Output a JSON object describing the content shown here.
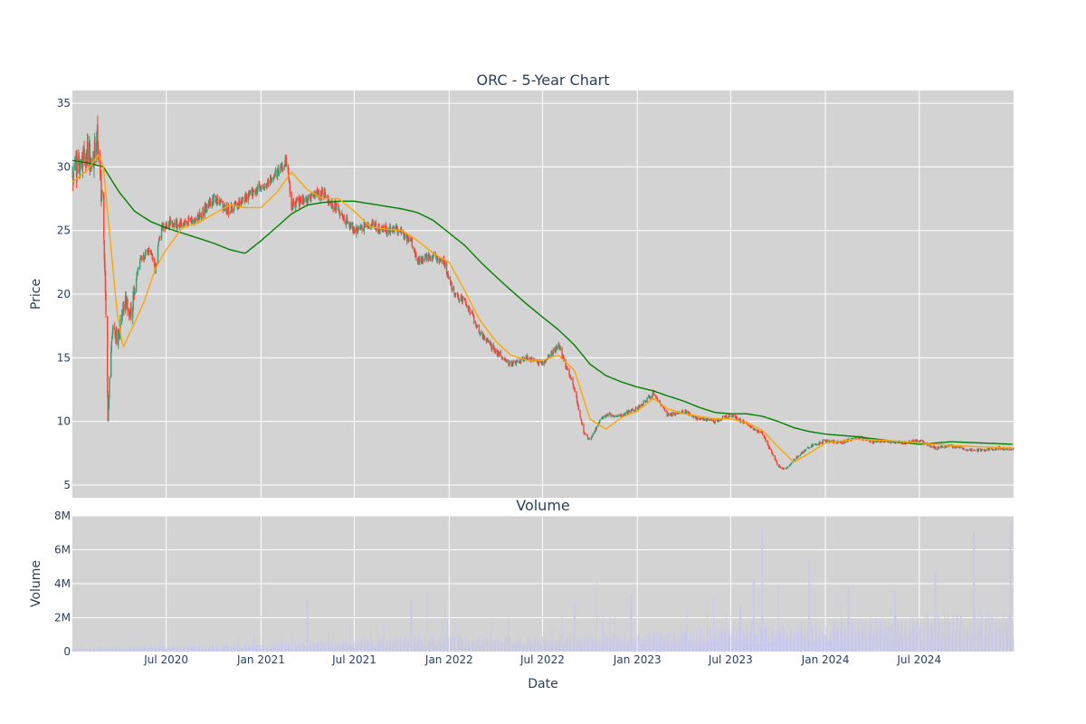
{
  "chart_data": [
    {
      "type": "candlestick",
      "title": "ORC - 5-Year Chart",
      "ylabel": "Price",
      "ylim": [
        4,
        36
      ],
      "yticks": [
        5,
        10,
        15,
        20,
        25,
        30,
        35
      ],
      "xlim": [
        "2020-01-01",
        "2024-12-31"
      ],
      "grid": true,
      "background": "#d3d3d3",
      "up_color": "#3d9970",
      "down_color": "#ff4136",
      "ma_short_color": "#ffa500",
      "ma_long_color": "#008000",
      "price_path": [
        [
          "2020-01-01",
          29.0
        ],
        [
          "2020-01-15",
          30.5
        ],
        [
          "2020-02-01",
          31.0
        ],
        [
          "2020-02-10",
          30.5
        ],
        [
          "2020-02-18",
          33.0
        ],
        [
          "2020-02-24",
          29.0
        ],
        [
          "2020-03-01",
          26.5
        ],
        [
          "2020-03-06",
          18.0
        ],
        [
          "2020-03-10",
          10.5
        ],
        [
          "2020-03-14",
          14.0
        ],
        [
          "2020-03-20",
          17.5
        ],
        [
          "2020-03-28",
          16.5
        ],
        [
          "2020-04-06",
          18.0
        ],
        [
          "2020-04-14",
          19.5
        ],
        [
          "2020-04-22",
          18.5
        ],
        [
          "2020-05-01",
          20.5
        ],
        [
          "2020-05-10",
          22.5
        ],
        [
          "2020-05-20",
          23.0
        ],
        [
          "2020-06-01",
          23.5
        ],
        [
          "2020-06-10",
          22.0
        ],
        [
          "2020-06-20",
          25.0
        ],
        [
          "2020-07-01",
          25.5
        ],
        [
          "2020-08-01",
          25.5
        ],
        [
          "2020-09-01",
          26.0
        ],
        [
          "2020-10-01",
          27.5
        ],
        [
          "2020-11-01",
          26.5
        ],
        [
          "2020-12-01",
          27.5
        ],
        [
          "2021-01-01",
          28.5
        ],
        [
          "2021-02-01",
          29.5
        ],
        [
          "2021-02-20",
          30.5
        ],
        [
          "2021-03-01",
          27.0
        ],
        [
          "2021-04-01",
          27.5
        ],
        [
          "2021-05-01",
          28.0
        ],
        [
          "2021-06-01",
          26.5
        ],
        [
          "2021-07-01",
          25.0
        ],
        [
          "2021-08-01",
          25.5
        ],
        [
          "2021-09-01",
          25.0
        ],
        [
          "2021-10-01",
          25.0
        ],
        [
          "2021-10-20",
          24.0
        ],
        [
          "2021-11-01",
          22.5
        ],
        [
          "2021-12-01",
          23.0
        ],
        [
          "2021-12-20",
          22.8
        ],
        [
          "2022-01-10",
          20.0
        ],
        [
          "2022-02-01",
          19.5
        ],
        [
          "2022-03-01",
          17.0
        ],
        [
          "2022-04-01",
          15.5
        ],
        [
          "2022-05-01",
          14.5
        ],
        [
          "2022-06-01",
          15.0
        ],
        [
          "2022-07-01",
          14.5
        ],
        [
          "2022-08-01",
          16.0
        ],
        [
          "2022-09-01",
          12.5
        ],
        [
          "2022-09-20",
          9.0
        ],
        [
          "2022-10-01",
          8.5
        ],
        [
          "2022-10-20",
          10.0
        ],
        [
          "2022-11-01",
          10.5
        ],
        [
          "2022-12-01",
          10.5
        ],
        [
          "2023-01-01",
          11.0
        ],
        [
          "2023-02-01",
          12.2
        ],
        [
          "2023-03-01",
          10.5
        ],
        [
          "2023-04-01",
          10.8
        ],
        [
          "2023-05-01",
          10.2
        ],
        [
          "2023-06-01",
          10.0
        ],
        [
          "2023-07-01",
          10.5
        ],
        [
          "2023-08-01",
          9.8
        ],
        [
          "2023-09-01",
          9.0
        ],
        [
          "2023-10-01",
          6.5
        ],
        [
          "2023-10-15",
          6.2
        ],
        [
          "2023-11-01",
          7.0
        ],
        [
          "2023-12-01",
          8.0
        ],
        [
          "2024-01-01",
          8.5
        ],
        [
          "2024-02-01",
          8.3
        ],
        [
          "2024-03-01",
          8.8
        ],
        [
          "2024-04-01",
          8.4
        ],
        [
          "2024-05-01",
          8.4
        ],
        [
          "2024-06-01",
          8.3
        ],
        [
          "2024-07-01",
          8.5
        ],
        [
          "2024-08-01",
          7.9
        ],
        [
          "2024-09-01",
          8.1
        ],
        [
          "2024-10-01",
          7.8
        ],
        [
          "2024-11-01",
          7.7
        ],
        [
          "2024-12-01",
          7.9
        ],
        [
          "2024-12-31",
          7.8
        ]
      ],
      "ma_short_path": [
        [
          "2020-01-01",
          28.8
        ],
        [
          "2020-02-01",
          29.8
        ],
        [
          "2020-02-20",
          31.0
        ],
        [
          "2020-03-01",
          30.0
        ],
        [
          "2020-03-15",
          24.0
        ],
        [
          "2020-03-28",
          18.5
        ],
        [
          "2020-04-08",
          15.8
        ],
        [
          "2020-04-28",
          17.5
        ],
        [
          "2020-05-20",
          19.5
        ],
        [
          "2020-06-10",
          22.0
        ],
        [
          "2020-07-01",
          23.5
        ],
        [
          "2020-08-01",
          25.2
        ],
        [
          "2020-09-01",
          25.6
        ],
        [
          "2020-10-01",
          26.3
        ],
        [
          "2020-11-01",
          27.0
        ],
        [
          "2020-12-01",
          26.8
        ],
        [
          "2021-01-01",
          26.8
        ],
        [
          "2021-02-01",
          28.0
        ],
        [
          "2021-03-01",
          29.6
        ],
        [
          "2021-04-01",
          28.2
        ],
        [
          "2021-05-01",
          27.5
        ],
        [
          "2021-06-01",
          27.5
        ],
        [
          "2021-07-01",
          26.5
        ],
        [
          "2021-08-01",
          25.3
        ],
        [
          "2021-09-01",
          25.1
        ],
        [
          "2021-10-01",
          25.0
        ],
        [
          "2021-11-01",
          24.2
        ],
        [
          "2021-12-01",
          23.2
        ],
        [
          "2022-01-01",
          22.5
        ],
        [
          "2022-02-01",
          20.2
        ],
        [
          "2022-03-01",
          18.0
        ],
        [
          "2022-04-01",
          16.3
        ],
        [
          "2022-05-01",
          15.2
        ],
        [
          "2022-06-01",
          14.8
        ],
        [
          "2022-07-01",
          14.8
        ],
        [
          "2022-08-01",
          15.2
        ],
        [
          "2022-09-01",
          14.0
        ],
        [
          "2022-10-01",
          10.2
        ],
        [
          "2022-11-01",
          9.4
        ],
        [
          "2022-12-01",
          10.3
        ],
        [
          "2023-01-01",
          10.8
        ],
        [
          "2023-02-01",
          11.8
        ],
        [
          "2023-03-01",
          11.0
        ],
        [
          "2023-04-01",
          10.6
        ],
        [
          "2023-05-01",
          10.4
        ],
        [
          "2023-06-01",
          10.2
        ],
        [
          "2023-07-01",
          10.2
        ],
        [
          "2023-08-01",
          9.9
        ],
        [
          "2023-09-01",
          9.3
        ],
        [
          "2023-10-01",
          8.0
        ],
        [
          "2023-11-01",
          6.8
        ],
        [
          "2023-12-01",
          7.5
        ],
        [
          "2024-01-01",
          8.3
        ],
        [
          "2024-03-01",
          8.6
        ],
        [
          "2024-05-01",
          8.5
        ],
        [
          "2024-07-01",
          8.3
        ],
        [
          "2024-09-01",
          8.1
        ],
        [
          "2024-12-31",
          7.9
        ]
      ],
      "ma_long_path": [
        [
          "2020-01-01",
          30.5
        ],
        [
          "2020-02-01",
          30.3
        ],
        [
          "2020-03-01",
          30.0
        ],
        [
          "2020-04-01",
          28.0
        ],
        [
          "2020-05-01",
          26.5
        ],
        [
          "2020-06-01",
          25.7
        ],
        [
          "2020-07-01",
          25.2
        ],
        [
          "2020-08-01",
          24.8
        ],
        [
          "2020-09-01",
          24.4
        ],
        [
          "2020-10-01",
          24.0
        ],
        [
          "2020-11-01",
          23.5
        ],
        [
          "2020-12-01",
          23.2
        ],
        [
          "2021-01-01",
          24.2
        ],
        [
          "2021-02-01",
          25.3
        ],
        [
          "2021-03-01",
          26.3
        ],
        [
          "2021-04-01",
          27.0
        ],
        [
          "2021-05-01",
          27.2
        ],
        [
          "2021-06-01",
          27.3
        ],
        [
          "2021-07-01",
          27.3
        ],
        [
          "2021-08-01",
          27.1
        ],
        [
          "2021-09-01",
          26.9
        ],
        [
          "2021-10-01",
          26.7
        ],
        [
          "2021-11-01",
          26.4
        ],
        [
          "2021-12-01",
          25.8
        ],
        [
          "2022-01-01",
          24.8
        ],
        [
          "2022-02-01",
          23.8
        ],
        [
          "2022-03-01",
          22.6
        ],
        [
          "2022-04-01",
          21.4
        ],
        [
          "2022-05-01",
          20.3
        ],
        [
          "2022-06-01",
          19.2
        ],
        [
          "2022-07-01",
          18.2
        ],
        [
          "2022-08-01",
          17.2
        ],
        [
          "2022-09-01",
          16.0
        ],
        [
          "2022-10-01",
          14.5
        ],
        [
          "2022-11-01",
          13.6
        ],
        [
          "2022-12-01",
          13.1
        ],
        [
          "2023-01-01",
          12.7
        ],
        [
          "2023-02-01",
          12.4
        ],
        [
          "2023-03-01",
          12.0
        ],
        [
          "2023-04-01",
          11.6
        ],
        [
          "2023-05-01",
          11.1
        ],
        [
          "2023-06-01",
          10.7
        ],
        [
          "2023-07-01",
          10.6
        ],
        [
          "2023-08-01",
          10.6
        ],
        [
          "2023-09-01",
          10.4
        ],
        [
          "2023-10-01",
          10.0
        ],
        [
          "2023-11-01",
          9.5
        ],
        [
          "2023-12-01",
          9.2
        ],
        [
          "2024-01-01",
          9.0
        ],
        [
          "2024-03-01",
          8.8
        ],
        [
          "2024-05-01",
          8.5
        ],
        [
          "2024-07-01",
          8.2
        ],
        [
          "2024-09-01",
          8.4
        ],
        [
          "2024-11-01",
          8.3
        ],
        [
          "2024-12-31",
          8.2
        ]
      ]
    },
    {
      "type": "bar",
      "title": "Volume",
      "ylabel": "Volume",
      "xlabel": "Date",
      "ylim": [
        0,
        8000000
      ],
      "yticks": [
        0,
        2000000,
        4000000,
        6000000,
        8000000
      ],
      "ytick_labels": [
        "0",
        "2M",
        "4M",
        "6M",
        "8M"
      ],
      "xticks": [
        "2020-07-01",
        "2021-01-01",
        "2021-07-01",
        "2022-01-01",
        "2022-07-01",
        "2023-01-01",
        "2023-07-01",
        "2024-01-01",
        "2024-07-01"
      ],
      "xtick_labels": [
        "Jul 2020",
        "Jan 2021",
        "Jul 2021",
        "Jan 2022",
        "Jul 2022",
        "Jan 2023",
        "Jul 2023",
        "Jan 2024",
        "Jul 2024"
      ],
      "grid": true,
      "background": "#d3d3d3",
      "bar_color": "#c8c8ec",
      "base_level": [
        [
          "2020-01-01",
          200000
        ],
        [
          "2020-06-01",
          300000
        ],
        [
          "2021-01-01",
          400000
        ],
        [
          "2021-07-01",
          600000
        ],
        [
          "2022-01-01",
          800000
        ],
        [
          "2022-07-01",
          700000
        ],
        [
          "2023-01-01",
          900000
        ],
        [
          "2023-07-01",
          1200000
        ],
        [
          "2024-01-01",
          1400000
        ],
        [
          "2024-07-01",
          1800000
        ],
        [
          "2024-12-31",
          2000000
        ]
      ],
      "spikes": [
        [
          "2021-04-01",
          3000000
        ],
        [
          "2021-10-20",
          3000000
        ],
        [
          "2021-11-20",
          3500000
        ],
        [
          "2021-12-25",
          2800000
        ],
        [
          "2022-09-01",
          2900000
        ],
        [
          "2022-10-15",
          4300000
        ],
        [
          "2022-12-20",
          3400000
        ],
        [
          "2023-07-20",
          2700000
        ],
        [
          "2023-08-15",
          4300000
        ],
        [
          "2023-09-01",
          7300000
        ],
        [
          "2023-10-01",
          3900000
        ],
        [
          "2023-12-01",
          5300000
        ],
        [
          "2024-02-15",
          3700000
        ],
        [
          "2024-05-15",
          3500000
        ],
        [
          "2024-08-01",
          4800000
        ],
        [
          "2024-10-15",
          7000000
        ],
        [
          "2024-12-25",
          7600000
        ]
      ]
    }
  ]
}
